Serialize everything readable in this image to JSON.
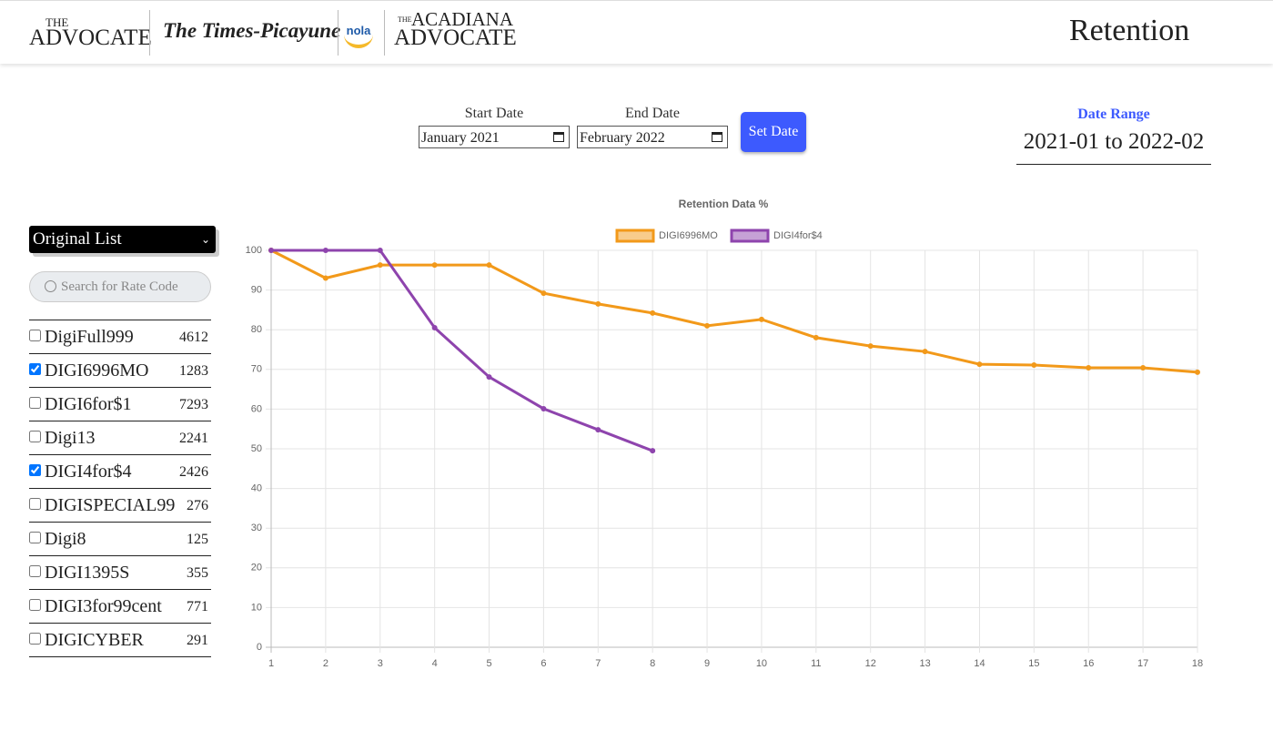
{
  "header": {
    "logos": {
      "advocate_small": "THE",
      "advocate": "ADVOCATE",
      "times_picayune": "The Times-Picayune",
      "nola": "nola",
      "acadiana_small": "THE",
      "acadiana_top": "ACADIANA",
      "acadiana_bottom": "ADVOCATE"
    },
    "title": "Retention"
  },
  "controls": {
    "start_label": "Start Date",
    "start_value": "January 2021",
    "end_label": "End Date",
    "end_value": "February 2022",
    "button": "Set Date",
    "range_label": "Date Range",
    "range_value": "2021-01 to 2022-02"
  },
  "sidebar": {
    "list_select": "Original List",
    "search_placeholder": "Search for Rate Code",
    "rate_codes": [
      {
        "name": "DigiFull999",
        "count": 4612,
        "checked": false
      },
      {
        "name": "DIGI6996MO",
        "count": 1283,
        "checked": true
      },
      {
        "name": "DIGI6for$1",
        "count": 7293,
        "checked": false
      },
      {
        "name": "Digi13",
        "count": 2241,
        "checked": false
      },
      {
        "name": "DIGI4for$4",
        "count": 2426,
        "checked": true
      },
      {
        "name": "DIGISPECIAL99",
        "count": 276,
        "checked": false
      },
      {
        "name": "Digi8",
        "count": 125,
        "checked": false
      },
      {
        "name": "DIGI1395S",
        "count": 355,
        "checked": false
      },
      {
        "name": "DIGI3for99cent",
        "count": 771,
        "checked": false
      },
      {
        "name": "DIGICYBER",
        "count": 291,
        "checked": false
      }
    ]
  },
  "chart_data": {
    "type": "line",
    "title": "Retention Data %",
    "legend": "top",
    "grid": true,
    "x": [
      1,
      2,
      3,
      4,
      5,
      6,
      7,
      8,
      9,
      10,
      11,
      12,
      13,
      14,
      15,
      16,
      17,
      18
    ],
    "series": [
      {
        "name": "DIGI6996MO",
        "color": "#f2991a",
        "values": [
          100,
          93,
          96.3,
          96.3,
          96.3,
          89.2,
          86.5,
          84.2,
          81,
          82.6,
          78,
          75.9,
          74.5,
          71.3,
          71.1,
          70.4,
          70.4,
          69.3
        ]
      },
      {
        "name": "DIGI4for$4",
        "color": "#8e44ad",
        "values": [
          100,
          100,
          100,
          80.5,
          68.1,
          60.1,
          54.8,
          49.5,
          null,
          null,
          null,
          null,
          null,
          null,
          null,
          null,
          null,
          null
        ]
      }
    ],
    "xlim": [
      1,
      18
    ],
    "xticks": [
      1,
      2,
      3,
      4,
      5,
      6,
      7,
      8,
      9,
      10,
      11,
      12,
      13,
      14,
      15,
      16,
      17,
      18
    ],
    "ylim": [
      0,
      100
    ],
    "yticks": [
      0,
      10,
      20,
      30,
      40,
      50,
      60,
      70,
      80,
      90,
      100
    ]
  }
}
